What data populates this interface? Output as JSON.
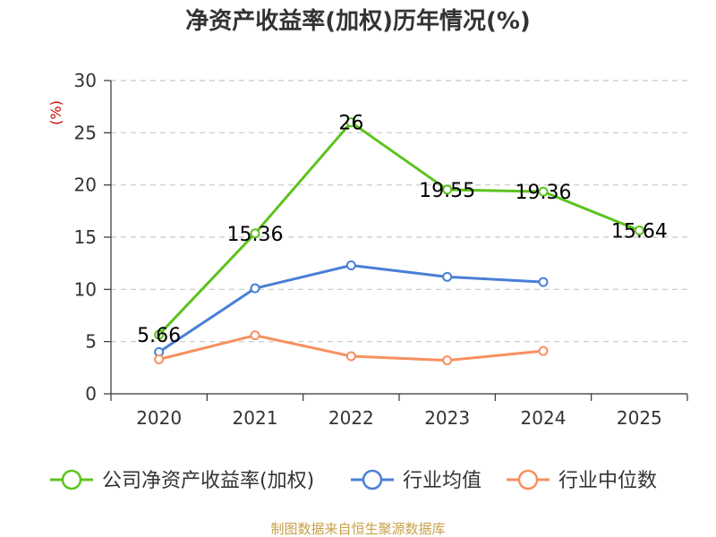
{
  "chart_data": {
    "type": "line",
    "title": "净资产收益率(加权)历年情况(%)",
    "ylabel": "(%)",
    "xlabel": "",
    "categories": [
      "2020",
      "2021",
      "2022",
      "2023",
      "2024",
      "2025"
    ],
    "ylim": [
      0,
      30
    ],
    "yticks": [
      0,
      5,
      10,
      15,
      20,
      25,
      30
    ],
    "grid": true,
    "legend_position": "bottom",
    "series": [
      {
        "name": "公司净资产收益率(加权)",
        "color": "#5cc31e",
        "values": [
          5.66,
          15.36,
          26,
          19.55,
          19.36,
          15.64
        ],
        "labels": [
          "5.66",
          "15.36",
          "26",
          "19.55",
          "19.36",
          "15.64"
        ],
        "show_labels": true
      },
      {
        "name": "行业均值",
        "color": "#4a7fd6",
        "values": [
          4.0,
          10.1,
          12.3,
          11.2,
          10.7,
          null
        ],
        "show_labels": false
      },
      {
        "name": "行业中位数",
        "color": "#f79060",
        "values": [
          3.3,
          5.6,
          3.6,
          3.2,
          4.1,
          null
        ],
        "show_labels": false
      }
    ]
  },
  "source": "制图数据来自恒生聚源数据库"
}
